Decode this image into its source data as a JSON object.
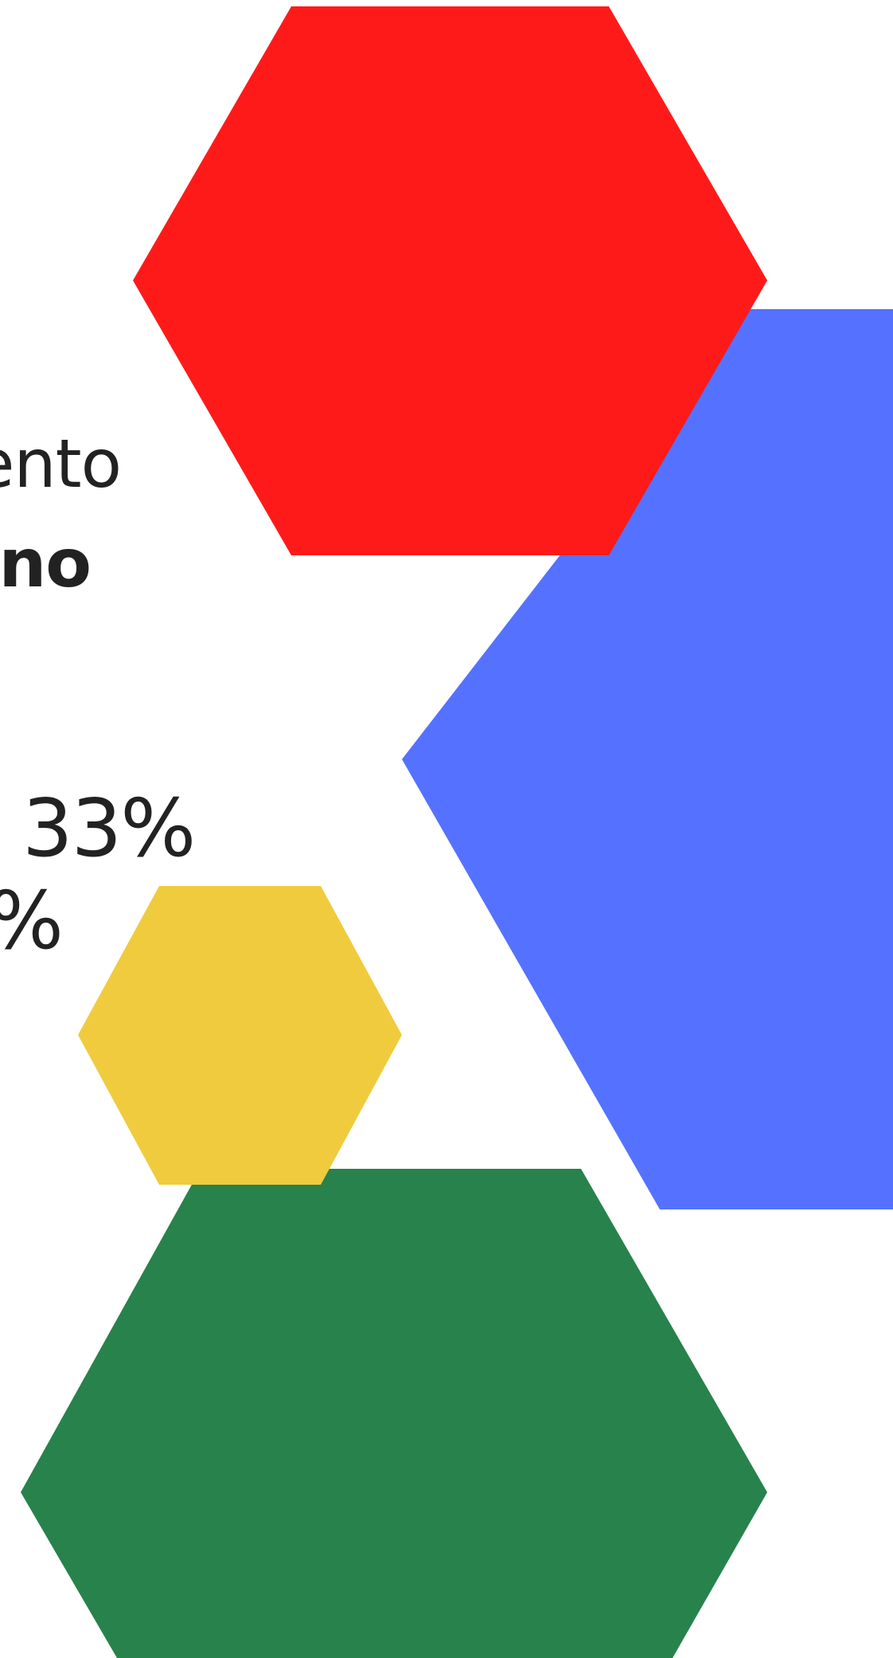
{
  "text": {
    "line1": "ento",
    "line2": "no",
    "pct1": "33%",
    "pct2": "%"
  },
  "colors": {
    "background": "#ffffff",
    "hex_red": "#ff1a1a",
    "hex_blue": "#5472ff",
    "hex_yellow": "#f0cb3e",
    "hex_green": "#27824c",
    "text": "#222222"
  }
}
